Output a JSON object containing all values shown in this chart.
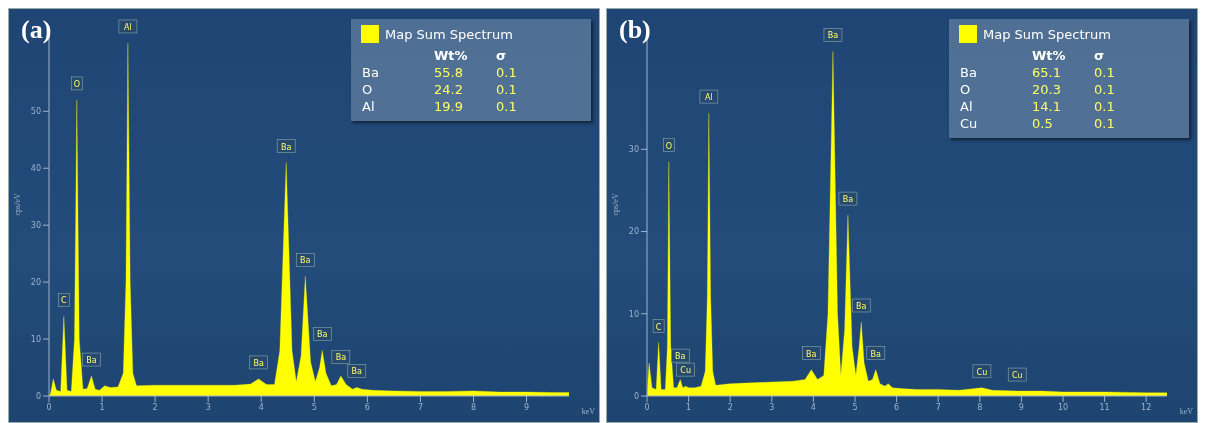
{
  "chart_data": [
    {
      "type": "area",
      "title": "(a)",
      "xlabel": "keV",
      "ylabel": "cps/eV",
      "legend": "top right",
      "xlim": [
        0,
        9.8
      ],
      "xticks": [
        0,
        1,
        2,
        3,
        4,
        5,
        6,
        7,
        8,
        9
      ],
      "ylim": [
        0,
        63.4
      ],
      "yticks": [
        0,
        10,
        20,
        30,
        40,
        50
      ],
      "series": [
        {
          "name": "Map Sum Spectrum",
          "color": "#ffff00",
          "x": [
            0,
            0.03,
            0.08,
            0.14,
            0.22,
            0.28,
            0.34,
            0.42,
            0.48,
            0.525,
            0.57,
            0.64,
            0.72,
            0.8,
            0.87,
            0.95,
            1.05,
            1.15,
            1.3,
            1.4,
            1.45,
            1.487,
            1.53,
            1.58,
            1.65,
            2.0,
            2.5,
            3.0,
            3.5,
            3.8,
            3.95,
            4.1,
            4.25,
            4.35,
            4.47,
            4.58,
            4.66,
            4.75,
            4.83,
            4.93,
            5.02,
            5.1,
            5.15,
            5.22,
            5.32,
            5.42,
            5.5,
            5.6,
            5.72,
            5.8,
            5.9,
            6.1,
            6.5,
            7,
            7.5,
            8.0,
            8.5,
            9,
            9.5,
            9.8
          ],
          "values": [
            0,
            0.5,
            3,
            1,
            0.8,
            14,
            1,
            0.8,
            10,
            52,
            10,
            1.2,
            1.3,
            3.5,
            1.2,
            1,
            1.8,
            1.5,
            1.6,
            4,
            20,
            62,
            20,
            4,
            1.8,
            1.9,
            1.9,
            1.9,
            1.9,
            2.1,
            3,
            2,
            2,
            8,
            41,
            8,
            2.5,
            7,
            21,
            6,
            2.5,
            5,
            8,
            4,
            1.8,
            2,
            3.5,
            2,
            1.2,
            1.5,
            1.2,
            1,
            0.9,
            0.8,
            0.8,
            0.9,
            0.7,
            0.7,
            0.6,
            0.6
          ]
        }
      ],
      "annotations": [
        {
          "text": "C",
          "x": 0.28,
          "y": 14
        },
        {
          "text": "O",
          "x": 0.525,
          "y": 52
        },
        {
          "text": "Ba",
          "x": 0.8,
          "y": 3.5
        },
        {
          "text": "Al",
          "x": 1.487,
          "y": 62
        },
        {
          "text": "Ba",
          "x": 3.95,
          "y": 3
        },
        {
          "text": "Ba",
          "x": 4.47,
          "y": 41
        },
        {
          "text": "Ba",
          "x": 4.83,
          "y": 21
        },
        {
          "text": "Ba",
          "x": 5.15,
          "y": 8
        },
        {
          "text": "Ba",
          "x": 5.5,
          "y": 3.5
        },
        {
          "text": "Ba",
          "x": 5.8,
          "y": 1.5
        },
        "Wt%",
        "σ",
        "Ba",
        "55.8",
        "0.1",
        "O",
        "24.2",
        "0.1",
        "Al",
        "19.9",
        "0.1"
      ]
    },
    {
      "type": "area",
      "title": "(b)",
      "xlabel": "keV",
      "ylabel": "cps/eV",
      "legend": "top right",
      "xlim": [
        0,
        12.5
      ],
      "xticks": [
        0,
        1,
        2,
        3,
        4,
        5,
        6,
        7,
        8,
        9,
        10,
        11,
        12
      ],
      "ylim": [
        0,
        43.9
      ],
      "yticks": [
        0,
        10,
        20,
        30
      ],
      "series": [
        {
          "name": "Map Sum Spectrum",
          "color": "#ffff00",
          "x": [
            0,
            0.05,
            0.12,
            0.22,
            0.28,
            0.34,
            0.44,
            0.49,
            0.525,
            0.57,
            0.64,
            0.72,
            0.8,
            0.86,
            0.93,
            1.0,
            1.15,
            1.3,
            1.4,
            1.45,
            1.487,
            1.53,
            1.58,
            1.65,
            2.0,
            2.5,
            3.0,
            3.5,
            3.8,
            3.95,
            4.1,
            4.25,
            4.35,
            4.47,
            4.58,
            4.66,
            4.75,
            4.83,
            4.93,
            5.02,
            5.1,
            5.15,
            5.22,
            5.32,
            5.42,
            5.5,
            5.6,
            5.72,
            5.8,
            5.9,
            6.1,
            6.5,
            7,
            7.5,
            8.05,
            8.3,
            8.9,
            9.5,
            10,
            11,
            12,
            12.5
          ],
          "values": [
            0,
            4,
            1,
            0.8,
            6.5,
            0.8,
            0.8,
            6,
            28.5,
            6,
            1,
            1,
            2,
            1,
            1.2,
            1,
            1,
            1.2,
            3,
            12,
            34.4,
            12,
            3,
            1.3,
            1.5,
            1.6,
            1.7,
            1.8,
            2.0,
            3.2,
            2,
            2.5,
            10,
            41.9,
            10,
            2.5,
            8,
            22,
            6,
            2.5,
            6,
            9,
            4,
            1.8,
            2,
            3.2,
            1.5,
            1.2,
            1.5,
            1,
            0.9,
            0.8,
            0.8,
            0.7,
            1.0,
            0.7,
            0.6,
            0.6,
            0.5,
            0.5,
            0.4,
            0.4
          ]
        }
      ],
      "annotations": [
        {
          "text": "C",
          "x": 0.28,
          "y": 6.5
        },
        {
          "text": "O",
          "x": 0.525,
          "y": 28.5
        },
        {
          "text": "Ba",
          "x": 0.8,
          "y": 2
        },
        {
          "text": "Cu",
          "x": 0.93,
          "y": 1.2
        },
        {
          "text": "Al",
          "x": 1.487,
          "y": 34.4
        },
        {
          "text": "Ba",
          "x": 3.95,
          "y": 3.2
        },
        {
          "text": "Ba",
          "x": 4.47,
          "y": 41.9
        },
        {
          "text": "Ba",
          "x": 4.83,
          "y": 22
        },
        {
          "text": "Ba",
          "x": 5.15,
          "y": 9
        },
        {
          "text": "Ba",
          "x": 5.5,
          "y": 3.2
        },
        {
          "text": "Cu",
          "x": 8.05,
          "y": 1.0
        },
        {
          "text": "Cu",
          "x": 8.9,
          "y": 0.6
        },
        "Wt%",
        "σ",
        "Ba",
        "65.1",
        "0.1",
        "O",
        "20.3",
        "0.1",
        "Al",
        "14.1",
        "0.1",
        "Cu",
        "0.5",
        "0.1"
      ]
    }
  ]
}
